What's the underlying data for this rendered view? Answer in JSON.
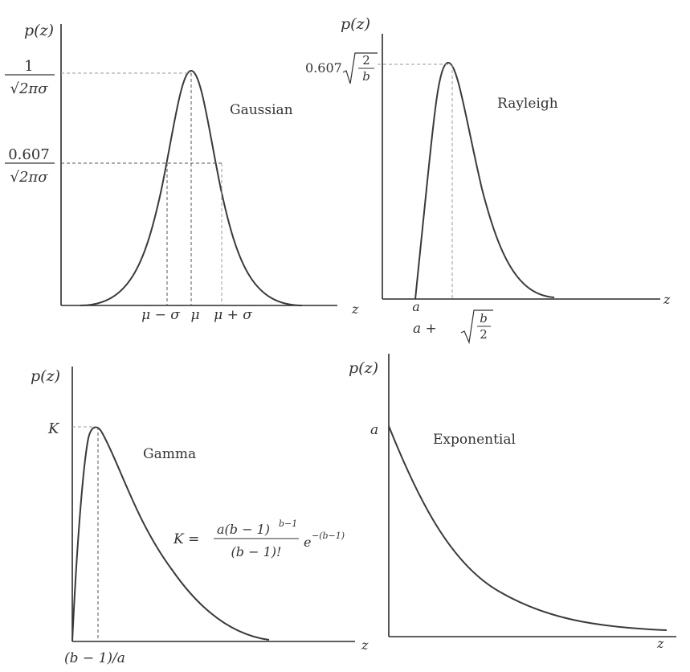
{
  "chart_data": [
    {
      "type": "line",
      "title": "Gaussian",
      "ylabel": "p(z)",
      "xlabel": "z",
      "x_ticks": [
        "μ − σ",
        "μ",
        "μ + σ"
      ],
      "y_ticks": [
        "1/√(2πσ)",
        "0.607/√(2πσ)"
      ],
      "series": [
        {
          "x": [
            -4.6,
            -4,
            -3,
            -2,
            -1.5,
            -1,
            -0.5,
            0,
            0.5,
            1,
            1.5,
            2,
            3,
            4,
            4.6
          ],
          "y": [
            0.0,
            0.0003,
            0.011,
            0.135,
            0.325,
            0.607,
            0.882,
            1.0,
            0.882,
            0.607,
            0.325,
            0.135,
            0.011,
            0.0003,
            0.0
          ]
        }
      ]
    },
    {
      "type": "line",
      "title": "Rayleigh",
      "ylabel": "p(z)",
      "xlabel": "z",
      "x_ticks": [
        "a",
        "a + √(b/2)"
      ],
      "y_ticks": [
        "0.607√(2/b)"
      ],
      "series": [
        {
          "x": [
            0,
            0.5,
            1,
            1.5,
            2,
            2.5,
            3,
            3.5,
            4,
            5
          ],
          "y": [
            0,
            0.536,
            0.872,
            0.998,
            0.932,
            0.744,
            0.514,
            0.305,
            0.157,
            0.028
          ]
        }
      ]
    },
    {
      "type": "line",
      "title": "Gamma",
      "ylabel": "p(z)",
      "xlabel": "z",
      "x_ticks": [
        "(b − 1)/a"
      ],
      "y_ticks": [
        "K"
      ],
      "annotation": "K = a(b − 1)^(b−1) / (b − 1)! · e^−(b−1)",
      "series": [
        {
          "x": [
            0,
            0.25,
            0.5,
            1,
            1.5,
            2,
            3,
            4,
            5,
            6
          ],
          "y": [
            0,
            0.77,
            0.91,
            1.0,
            0.92,
            0.78,
            0.5,
            0.29,
            0.15,
            0.07
          ]
        }
      ]
    },
    {
      "type": "line",
      "title": "Exponential",
      "ylabel": "p(z)",
      "xlabel": "z",
      "y_ticks": [
        "a"
      ],
      "series": [
        {
          "x": [
            0,
            1,
            2,
            3,
            4,
            5,
            6,
            7
          ],
          "y": [
            1.0,
            0.55,
            0.3,
            0.16,
            0.09,
            0.05,
            0.025,
            0.01
          ]
        }
      ]
    }
  ],
  "labels": {
    "gaussian": {
      "ylabel": "p(z)",
      "xlabel": "z",
      "title": "Gaussian",
      "ytick1_num": "1",
      "ytick1_den": "√2πσ",
      "ytick2_num": "0.607",
      "ytick2_den": "√2πσ",
      "xtick_left": "μ − σ",
      "xtick_mid": "μ",
      "xtick_right": "μ + σ"
    },
    "rayleigh": {
      "ylabel": "p(z)",
      "xlabel": "z",
      "title": "Rayleigh",
      "ytick_coef": "0.607",
      "ytick_num": "2",
      "ytick_den": "b",
      "xtick_a": "a",
      "xtick2_prefix": "a +",
      "xtick2_num": "b",
      "xtick2_den": "2"
    },
    "gamma": {
      "ylabel": "p(z)",
      "xlabel": "z",
      "title": "Gamma",
      "ytick": "K",
      "xtick": "(b − 1)/a",
      "k_lhs": "K =",
      "k_num": "a(b − 1)",
      "k_num_sup": "b−1",
      "k_den": "(b − 1)!",
      "k_exp_base": "e",
      "k_exp_sup": "−(b−1)"
    },
    "exponential": {
      "ylabel": "p(z)",
      "xlabel": "z",
      "title": "Exponential",
      "ytick": "a"
    }
  }
}
